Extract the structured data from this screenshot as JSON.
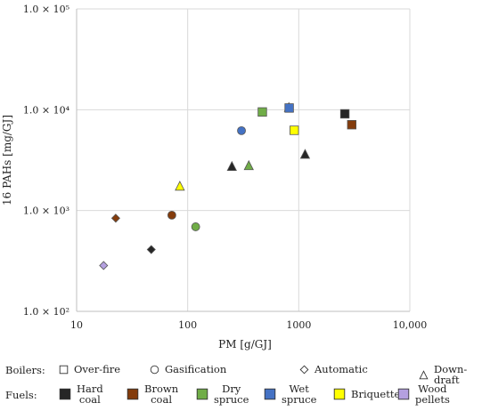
{
  "chart_data": {
    "type": "scatter",
    "title": "",
    "xlabel": "PM [g/GJ]",
    "ylabel": "16 PAHs [mg/GJ]",
    "x_scale": "log",
    "y_scale": "log",
    "xlim": [
      10,
      10000
    ],
    "ylim": [
      100,
      100000
    ],
    "x_ticks": [
      {
        "value": 10,
        "label": "10"
      },
      {
        "value": 100,
        "label": "100"
      },
      {
        "value": 1000,
        "label": "1000"
      },
      {
        "value": 10000,
        "label": "10,000"
      }
    ],
    "y_ticks": [
      {
        "value": 100,
        "label": "1.0 × 10²"
      },
      {
        "value": 1000,
        "label": "1.0 × 10³"
      },
      {
        "value": 10000,
        "label": "1.0 × 10⁴"
      },
      {
        "value": 100000,
        "label": "1.0 × 10⁵"
      }
    ],
    "grid": true,
    "points": [
      {
        "x": 22.5,
        "y": 840,
        "boiler": "automatic",
        "fuel": "brown_coal"
      },
      {
        "x": 47,
        "y": 410,
        "boiler": "automatic",
        "fuel": "hard_coal"
      },
      {
        "x": 17.5,
        "y": 285,
        "boiler": "automatic",
        "fuel": "wood_pellets"
      },
      {
        "x": 72,
        "y": 900,
        "boiler": "gasification",
        "fuel": "brown_coal"
      },
      {
        "x": 118,
        "y": 690,
        "boiler": "gasification",
        "fuel": "dry_spruce"
      },
      {
        "x": 305,
        "y": 6200,
        "boiler": "gasification",
        "fuel": "wet_spruce"
      },
      {
        "x": 85,
        "y": 1740,
        "boiler": "down_draft",
        "fuel": "briquettes"
      },
      {
        "x": 250,
        "y": 2730,
        "boiler": "down_draft",
        "fuel": "hard_coal"
      },
      {
        "x": 355,
        "y": 2780,
        "boiler": "down_draft",
        "fuel": "dry_spruce"
      },
      {
        "x": 815,
        "y": 10500,
        "boiler": "down_draft",
        "fuel": "wet_spruce"
      },
      {
        "x": 1140,
        "y": 3600,
        "boiler": "down_draft",
        "fuel": "hard_coal"
      },
      {
        "x": 470,
        "y": 9500,
        "boiler": "over_fire",
        "fuel": "dry_spruce"
      },
      {
        "x": 820,
        "y": 10400,
        "boiler": "over_fire",
        "fuel": "wet_spruce"
      },
      {
        "x": 910,
        "y": 6250,
        "boiler": "over_fire",
        "fuel": "briquettes"
      },
      {
        "x": 2600,
        "y": 9100,
        "boiler": "over_fire",
        "fuel": "hard_coal"
      },
      {
        "x": 3000,
        "y": 7100,
        "boiler": "over_fire",
        "fuel": "brown_coal"
      }
    ]
  },
  "legend": {
    "boilers_title": "Boilers:",
    "fuels_title": "Fuels:",
    "boilers": [
      {
        "key": "over_fire",
        "label": "Over-fire",
        "symbol": "square"
      },
      {
        "key": "gasification",
        "label": "Gasification",
        "symbol": "circle"
      },
      {
        "key": "automatic",
        "label": "Automatic",
        "symbol": "diamond"
      },
      {
        "key": "down_draft",
        "label": "Down-draft",
        "symbol": "triangle"
      }
    ],
    "fuels": [
      {
        "key": "hard_coal",
        "label": "Hard\ncoal",
        "color": "#262626"
      },
      {
        "key": "brown_coal",
        "label": "Brown\ncoal",
        "color": "#843c0c"
      },
      {
        "key": "dry_spruce",
        "label": "Dry\nspruce",
        "color": "#70ad47"
      },
      {
        "key": "wet_spruce",
        "label": "Wet\nspruce",
        "color": "#4472c4"
      },
      {
        "key": "briquettes",
        "label": "Briquettes",
        "color": "#ffff00"
      },
      {
        "key": "wood_pellets",
        "label": "Wood\npellets",
        "color": "#b4a0e0"
      }
    ]
  }
}
